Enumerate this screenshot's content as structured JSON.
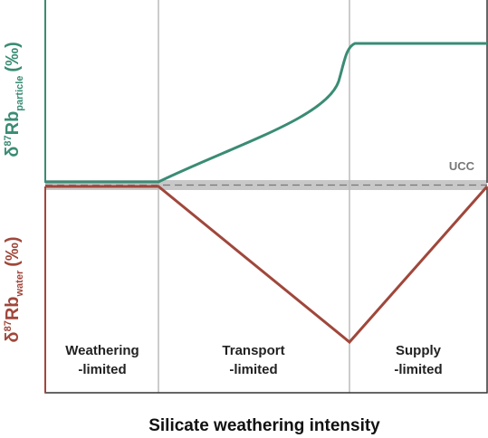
{
  "y_axis": {
    "top_label": {
      "symbol": "δ",
      "superscript": "87",
      "element": "Rb",
      "subscript": "particle",
      "unit": "(‰)"
    },
    "bottom_label": {
      "symbol": "δ",
      "superscript": "87",
      "element": "Rb",
      "subscript": "water",
      "unit": "(‰)"
    }
  },
  "reference": "UCC",
  "regions": [
    {
      "line1": "Weathering",
      "line2": "-limited"
    },
    {
      "line1": "Transport",
      "line2": "-limited"
    },
    {
      "line1": "Supply",
      "line2": "-limited"
    }
  ],
  "x_label": "Silicate weathering intensity"
}
